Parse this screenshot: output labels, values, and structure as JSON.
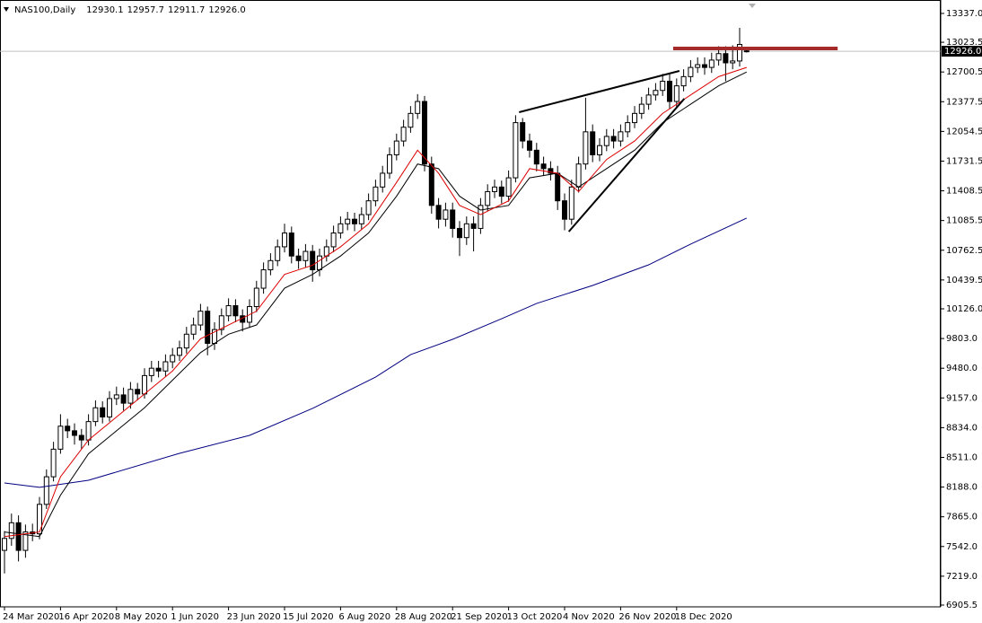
{
  "chart_data": {
    "type": "candlestick",
    "title": "NAS100,Daily",
    "categories": [
      "24 Mar 2020",
      null,
      null,
      null,
      null,
      null,
      null,
      null,
      "16 Apr 2020",
      null,
      null,
      null,
      null,
      null,
      null,
      null,
      "8 May 2020",
      null,
      null,
      null,
      null,
      null,
      null,
      null,
      "1 Jun 2020",
      null,
      null,
      null,
      null,
      null,
      null,
      null,
      "23 Jun 2020",
      null,
      null,
      null,
      null,
      null,
      null,
      null,
      "15 Jul 2020",
      null,
      null,
      null,
      null,
      null,
      null,
      null,
      "6 Aug 2020",
      null,
      null,
      null,
      null,
      null,
      null,
      null,
      "28 Aug 2020",
      null,
      null,
      null,
      null,
      null,
      null,
      null,
      "21 Sep 2020",
      null,
      null,
      null,
      null,
      null,
      null,
      null,
      "13 Oct 2020",
      null,
      null,
      null,
      null,
      null,
      null,
      null,
      "4 Nov 2020",
      null,
      null,
      null,
      null,
      null,
      null,
      null,
      "26 Nov 2020",
      null,
      null,
      null,
      null,
      null,
      null,
      null,
      "18 Dec 2020",
      null,
      null,
      null,
      null,
      null,
      null,
      null,
      null,
      null,
      null
    ],
    "open": [
      7500,
      7630,
      7800,
      7500,
      7700,
      7680,
      8000,
      8300,
      8600,
      8850,
      8800,
      8750,
      8700,
      8900,
      9050,
      8950,
      9150,
      9190,
      9100,
      9250,
      9200,
      9400,
      9480,
      9450,
      9550,
      9620,
      9700,
      9850,
      9950,
      10100,
      9750,
      9900,
      10050,
      10160,
      10050,
      9980,
      10150,
      10350,
      10550,
      10650,
      10800,
      10950,
      10700,
      10650,
      10750,
      10550,
      10700,
      10800,
      10950,
      11050,
      11100,
      11050,
      11150,
      11300,
      11450,
      11600,
      11800,
      11950,
      12100,
      12250,
      12380,
      11700,
      11250,
      11100,
      11200,
      11000,
      10900,
      11050,
      11000,
      11250,
      11400,
      11450,
      11350,
      11550,
      12150,
      11950,
      11850,
      11700,
      11650,
      11600,
      11300,
      11100,
      11450,
      11700,
      12050,
      11800,
      11900,
      12000,
      11950,
      12050,
      12150,
      12250,
      12350,
      12450,
      12500,
      12600,
      12380,
      12550,
      12650,
      12750,
      12780,
      12750,
      12830,
      12900,
      12800,
      12820,
      12930.1
    ],
    "high": [
      7710,
      7900,
      7880,
      7780,
      7790,
      8080,
      8380,
      8680,
      8980,
      8930,
      8880,
      8820,
      8980,
      9130,
      9120,
      9230,
      9280,
      9270,
      9330,
      9320,
      9480,
      9560,
      9560,
      9630,
      9700,
      9780,
      9930,
      10030,
      10180,
      10150,
      9980,
      10130,
      10240,
      10230,
      10120,
      10230,
      10430,
      10630,
      10730,
      10880,
      11050,
      11020,
      10780,
      10830,
      10820,
      10780,
      10880,
      11030,
      11130,
      11180,
      11170,
      11230,
      11380,
      11530,
      11680,
      11880,
      12030,
      12180,
      12330,
      12460,
      12440,
      11780,
      11330,
      11280,
      11280,
      11080,
      11130,
      11130,
      11330,
      11480,
      11530,
      11520,
      11630,
      12230,
      12200,
      12030,
      11930,
      11780,
      11730,
      11680,
      11380,
      11530,
      11780,
      12420,
      12130,
      11980,
      12080,
      12080,
      12130,
      12230,
      12330,
      12430,
      12530,
      12580,
      12680,
      12680,
      12630,
      12730,
      12830,
      12860,
      12860,
      12910,
      12980,
      12980,
      12990,
      13180,
      12957.7
    ],
    "low": [
      7250,
      7550,
      7380,
      7420,
      7600,
      7620,
      7950,
      8250,
      8550,
      8720,
      8650,
      8600,
      8640,
      8850,
      8880,
      8900,
      9080,
      9020,
      9040,
      9130,
      9150,
      9330,
      9380,
      9390,
      9480,
      9560,
      9640,
      9790,
      9890,
      9620,
      9680,
      9840,
      9990,
      9980,
      9880,
      9920,
      10090,
      10290,
      10490,
      10590,
      10740,
      10620,
      10560,
      10580,
      10420,
      10480,
      10640,
      10740,
      10890,
      10980,
      10970,
      10990,
      11090,
      11240,
      11390,
      11540,
      11740,
      11890,
      12040,
      12190,
      11620,
      11160,
      11000,
      11020,
      10900,
      10700,
      10820,
      10750,
      10940,
      11190,
      11330,
      11270,
      11290,
      11500,
      11870,
      11770,
      11620,
      11570,
      11520,
      11200,
      10980,
      11040,
      11390,
      11640,
      11720,
      11730,
      11840,
      11870,
      11890,
      11990,
      12090,
      12190,
      12290,
      12390,
      12440,
      12300,
      12320,
      12490,
      12590,
      12690,
      12670,
      12690,
      12770,
      12600,
      12730,
      12760,
      12911.7
    ],
    "close": [
      7630,
      7800,
      7500,
      7700,
      7680,
      8000,
      8300,
      8600,
      8850,
      8800,
      8750,
      8700,
      8900,
      9050,
      8950,
      9150,
      9190,
      9100,
      9250,
      9200,
      9400,
      9480,
      9450,
      9550,
      9620,
      9700,
      9850,
      9950,
      10100,
      9750,
      9900,
      10050,
      10160,
      10050,
      9980,
      10150,
      10350,
      10550,
      10650,
      10800,
      10950,
      10700,
      10650,
      10750,
      10550,
      10700,
      10800,
      10950,
      11050,
      11100,
      11050,
      11150,
      11300,
      11450,
      11600,
      11800,
      11950,
      12100,
      12250,
      12380,
      11700,
      11250,
      11100,
      11200,
      11000,
      10900,
      11050,
      11000,
      11250,
      11400,
      11450,
      11350,
      11550,
      12150,
      11950,
      11850,
      11700,
      11650,
      11600,
      11300,
      11100,
      11450,
      11700,
      12050,
      11800,
      11900,
      12000,
      11950,
      12050,
      12150,
      12250,
      12350,
      12450,
      12500,
      12600,
      12380,
      12550,
      12650,
      12750,
      12780,
      12750,
      12830,
      12900,
      12800,
      12820,
      13000,
      12926
    ],
    "up_color": "#ffffff",
    "down_color": "#000000",
    "candle_edge": "#000000",
    "series": [
      {
        "type": "line",
        "color": "#000080",
        "x": [
          0,
          5,
          12,
          25,
          35,
          44,
          53,
          58,
          64,
          71,
          76,
          84,
          92,
          98,
          106
        ],
        "values": [
          8233,
          8185,
          8262,
          8555,
          8750,
          9043,
          9384,
          9628,
          9794,
          10018,
          10184,
          10380,
          10604,
          10829,
          11112
        ]
      },
      {
        "type": "line",
        "color": "#000000",
        "x": [
          0,
          5,
          8,
          12,
          16,
          20,
          24,
          28,
          32,
          36,
          40,
          44,
          48,
          52,
          56,
          59,
          62,
          65,
          68,
          72,
          75,
          79,
          82,
          86,
          90,
          94,
          98,
          102,
          106
        ],
        "values": [
          7700,
          7650,
          8100,
          8550,
          8800,
          9050,
          9350,
          9650,
          9850,
          9950,
          10350,
          10500,
          10700,
          10950,
          11350,
          11700,
          11650,
          11350,
          11200,
          11250,
          11550,
          11600,
          11450,
          11650,
          11850,
          12150,
          12350,
          12550,
          12700
        ]
      },
      {
        "type": "line",
        "color": "#dd0000",
        "x": [
          0,
          5,
          8,
          12,
          16,
          20,
          24,
          28,
          32,
          36,
          40,
          44,
          48,
          52,
          56,
          59,
          62,
          65,
          68,
          72,
          75,
          79,
          82,
          86,
          90,
          94,
          98,
          102,
          106
        ],
        "values": [
          7650,
          7700,
          8300,
          8700,
          8950,
          9200,
          9450,
          9800,
          9950,
          10100,
          10500,
          10600,
          10800,
          11050,
          11500,
          11850,
          11600,
          11250,
          11150,
          11300,
          11650,
          11600,
          11400,
          11750,
          11950,
          12250,
          12450,
          12650,
          12750
        ]
      }
    ],
    "annotations": [
      {
        "color": "#000000",
        "width": 2,
        "x": [
          73.5,
          96.4
        ],
        "y": [
          12263,
          12712
        ]
      },
      {
        "color": "#000000",
        "width": 2,
        "x": [
          80.6,
          97.1
        ],
        "y": [
          10965,
          12410
        ]
      },
      {
        "color": "#a52a2a",
        "width": 4,
        "x": [
          95.5,
          119
        ],
        "y": [
          12956,
          12956
        ]
      }
    ],
    "price_line": {
      "value": 12926,
      "label": "12926.0",
      "color": "#c0c0c0"
    },
    "ylim": [
      6886,
      13483
    ],
    "yticks": [
      {
        "value": 13337,
        "label": "13337.0"
      },
      {
        "value": 13023.5,
        "label": "13023.5"
      },
      {
        "value": 12700.5,
        "label": "12700.5"
      },
      {
        "value": 12377.5,
        "label": "12377.5"
      },
      {
        "value": 12054.5,
        "label": "12054.5"
      },
      {
        "value": 11731.5,
        "label": "11731.5"
      },
      {
        "value": 11408.5,
        "label": "11408.5"
      },
      {
        "value": 11085.5,
        "label": "11085.5"
      },
      {
        "value": 10762.5,
        "label": "10762.5"
      },
      {
        "value": 10439.5,
        "label": "10439.5"
      },
      {
        "value": 10126,
        "label": "10126.0"
      },
      {
        "value": 9803,
        "label": "9803.0"
      },
      {
        "value": 9480,
        "label": "9480.0"
      },
      {
        "value": 9157,
        "label": "9157.0"
      },
      {
        "value": 8834,
        "label": "8834.0"
      },
      {
        "value": 8511,
        "label": "8511.0"
      },
      {
        "value": 8188,
        "label": "8188.0"
      },
      {
        "value": 7865,
        "label": "7865.0"
      },
      {
        "value": 7542,
        "label": "7542.0"
      },
      {
        "value": 7219,
        "label": "7219.0"
      },
      {
        "value": 6905.5,
        "label": "6905.5"
      }
    ],
    "grid": false
  }
}
